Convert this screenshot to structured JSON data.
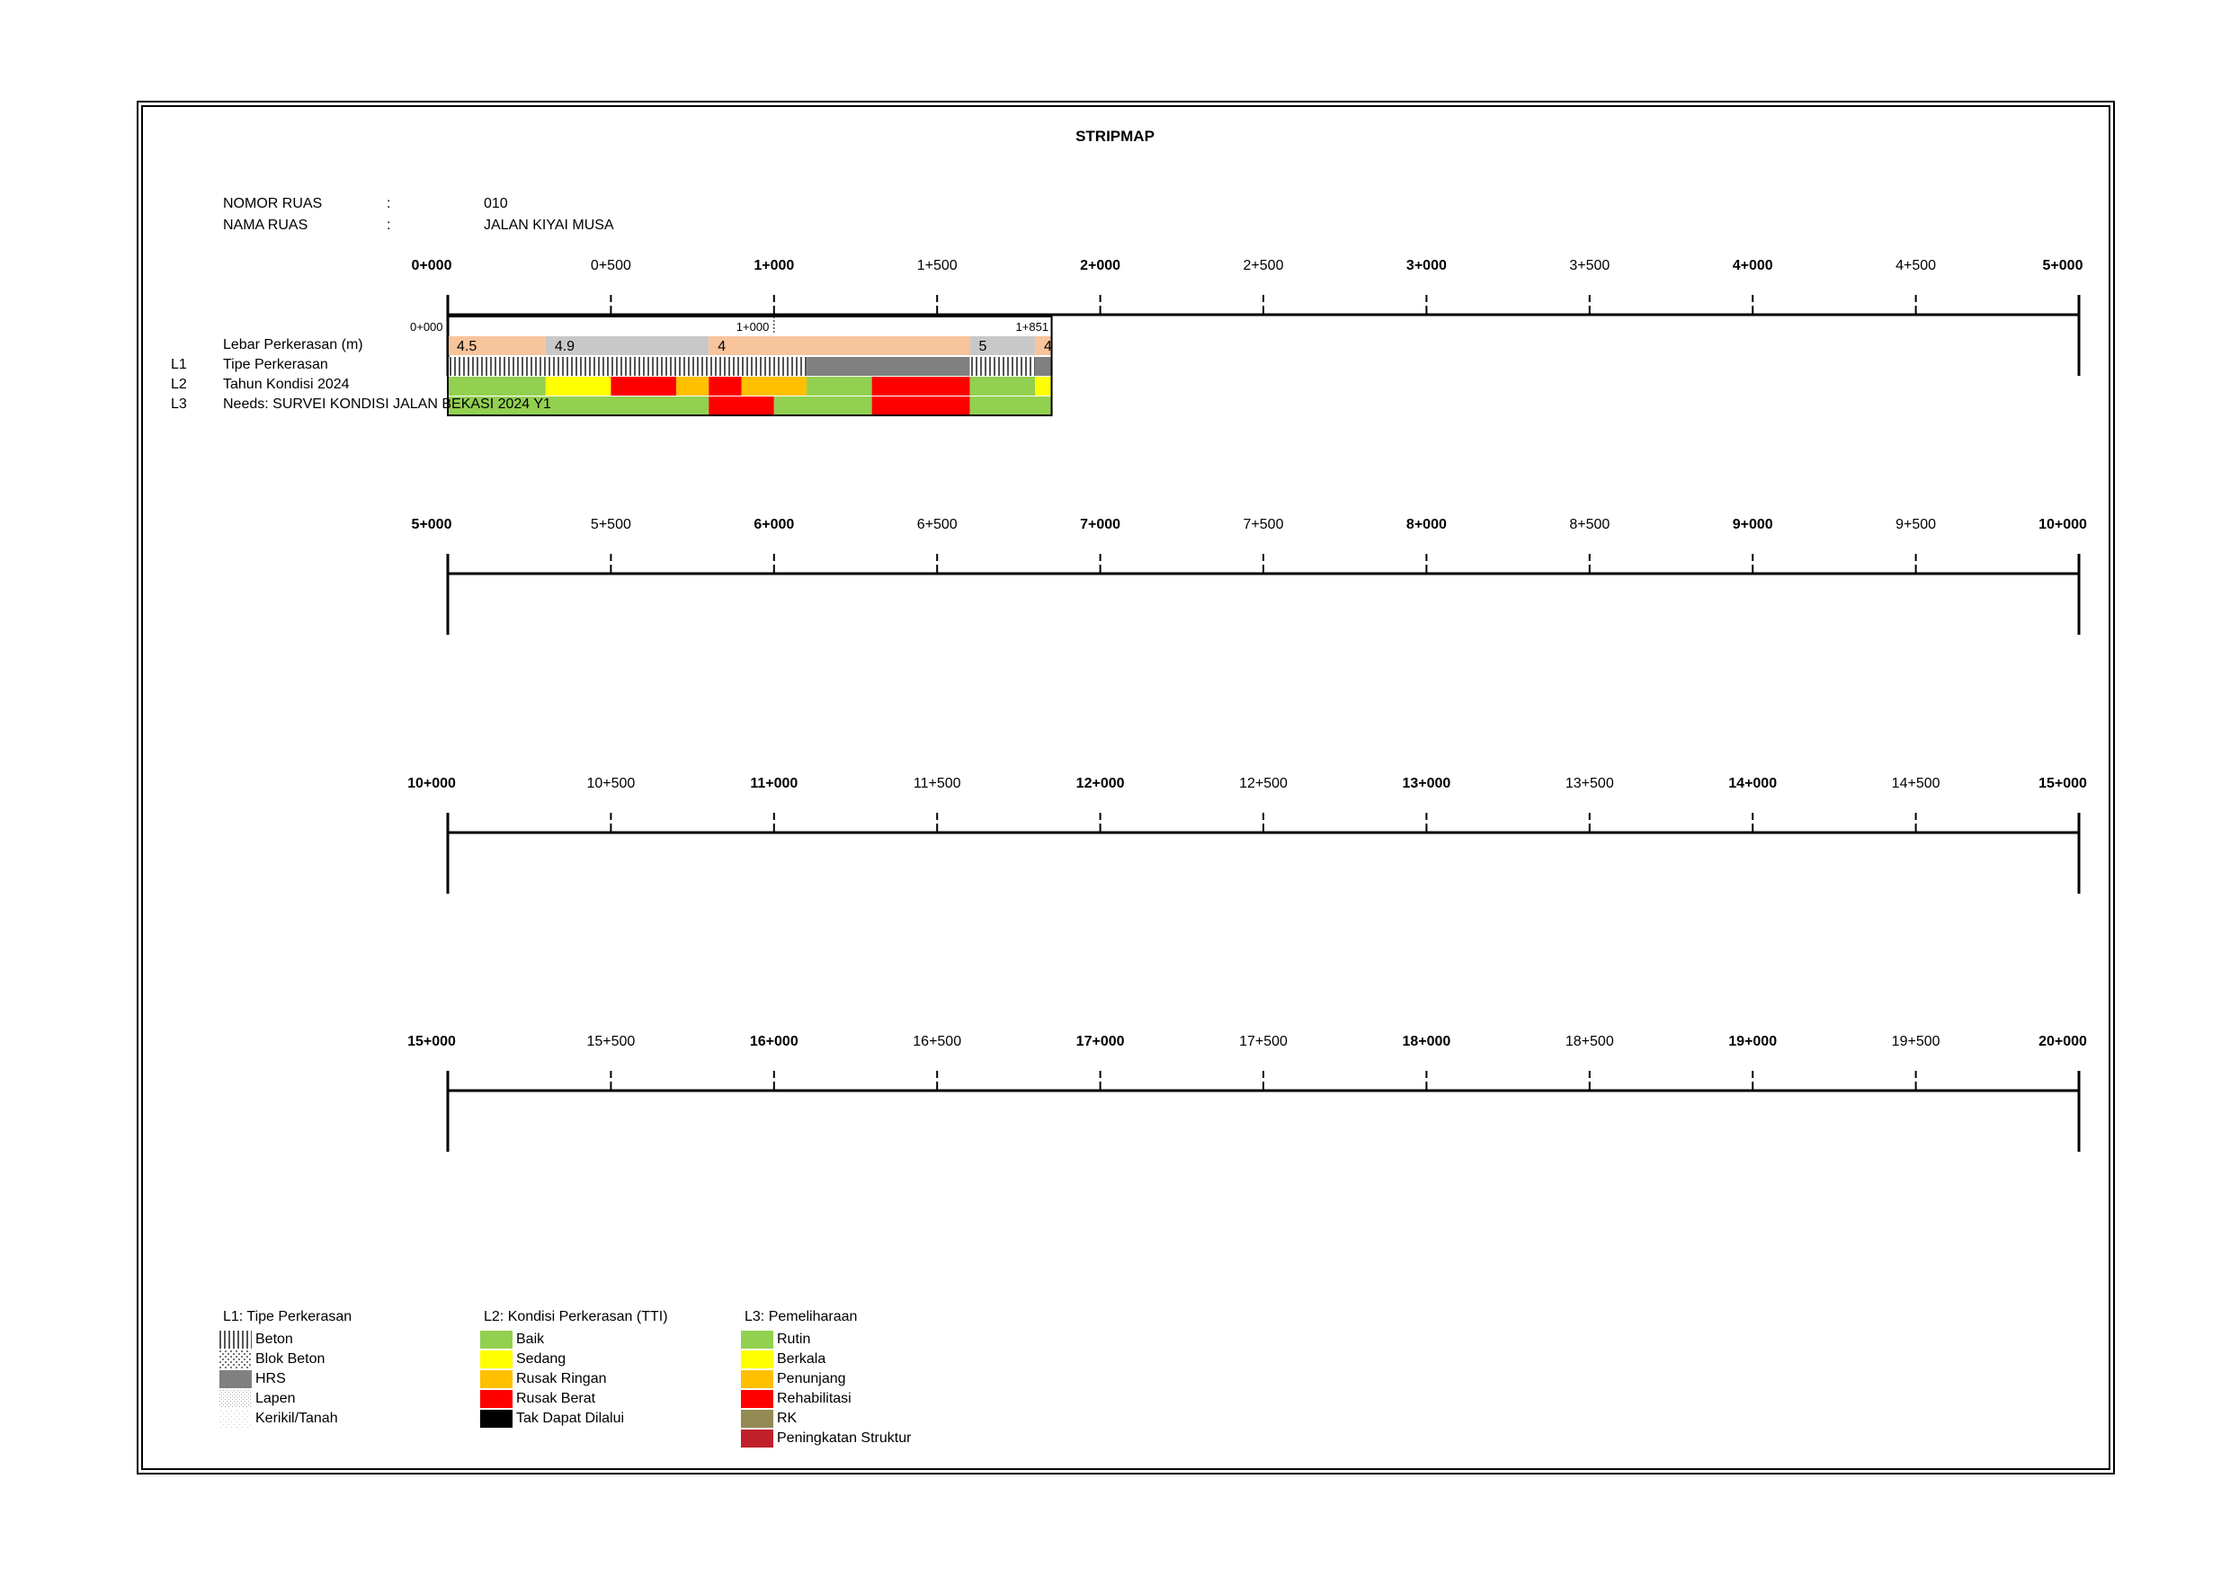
{
  "title": "STRIPMAP",
  "header": {
    "nomor_label": "NOMOR RUAS",
    "nama_label": "NAMA RUAS",
    "colon": ":",
    "nomor_value": "010",
    "nama_value": "JALAN KIYAI MUSA"
  },
  "rows": {
    "width_label": "Lebar Perkerasan (m)",
    "l1_code": "L1",
    "l1_label": "Tipe Perkerasan",
    "l2_code": "L2",
    "l2_label": "Tahun Kondisi 2024",
    "l3_code": "L3",
    "l3_label": "Needs: SURVEI KONDISI JALAN BEKASI 2024 Y1"
  },
  "chainage_lines": [
    {
      "labels": [
        "0+000",
        "0+500",
        "1+000",
        "1+500",
        "2+000",
        "2+500",
        "3+000",
        "3+500",
        "4+000",
        "4+500",
        "5+000"
      ]
    },
    {
      "labels": [
        "5+000",
        "5+500",
        "6+000",
        "6+500",
        "7+000",
        "7+500",
        "8+000",
        "8+500",
        "9+000",
        "9+500",
        "10+000"
      ]
    },
    {
      "labels": [
        "10+000",
        "10+500",
        "11+000",
        "11+500",
        "12+000",
        "12+500",
        "13+000",
        "13+500",
        "14+000",
        "14+500",
        "15+000"
      ]
    },
    {
      "labels": [
        "15+000",
        "15+500",
        "16+000",
        "16+500",
        "17+000",
        "17+500",
        "18+000",
        "18+500",
        "19+000",
        "19+500",
        "20+000"
      ]
    }
  ],
  "road": {
    "start_label": "0+000",
    "mid_label": "1+000",
    "end_label": "1+851",
    "length_km": 1.851,
    "width_segments": [
      {
        "from": 0.0,
        "to": 0.3,
        "value": "4.5",
        "color": "#f8c49c"
      },
      {
        "from": 0.3,
        "to": 0.8,
        "value": "4.9",
        "color": "#c8c8c8"
      },
      {
        "from": 0.8,
        "to": 1.6,
        "value": "4",
        "color": "#f8c49c"
      },
      {
        "from": 1.6,
        "to": 1.8,
        "value": "5",
        "color": "#c8c8c8"
      },
      {
        "from": 1.8,
        "to": 1.851,
        "value": "4",
        "color": "#f8c49c"
      }
    ],
    "type_segments": [
      {
        "from": 0.0,
        "to": 1.1,
        "type": "Beton"
      },
      {
        "from": 1.1,
        "to": 1.6,
        "type": "HRS"
      },
      {
        "from": 1.6,
        "to": 1.8,
        "type": "Beton"
      },
      {
        "from": 1.8,
        "to": 1.851,
        "type": "HRS"
      }
    ],
    "condition_segments": [
      {
        "from": 0.0,
        "to": 0.3,
        "class": "Baik"
      },
      {
        "from": 0.3,
        "to": 0.5,
        "class": "Sedang"
      },
      {
        "from": 0.5,
        "to": 0.7,
        "class": "Rusak Berat"
      },
      {
        "from": 0.7,
        "to": 0.8,
        "class": "Rusak Ringan"
      },
      {
        "from": 0.8,
        "to": 0.9,
        "class": "Rusak Berat"
      },
      {
        "from": 0.9,
        "to": 1.1,
        "class": "Rusak Ringan"
      },
      {
        "from": 1.1,
        "to": 1.3,
        "class": "Baik"
      },
      {
        "from": 1.3,
        "to": 1.6,
        "class": "Rusak Berat"
      },
      {
        "from": 1.6,
        "to": 1.8,
        "class": "Baik"
      },
      {
        "from": 1.8,
        "to": 1.851,
        "class": "Sedang"
      }
    ],
    "needs_segments": [
      {
        "from": 0.0,
        "to": 0.8,
        "class": "Rutin"
      },
      {
        "from": 0.8,
        "to": 1.0,
        "class": "Rehabilitasi"
      },
      {
        "from": 1.0,
        "to": 1.3,
        "class": "Rutin"
      },
      {
        "from": 1.3,
        "to": 1.6,
        "class": "Rehabilitasi"
      },
      {
        "from": 1.6,
        "to": 1.851,
        "class": "Rutin"
      }
    ]
  },
  "legend": {
    "l1": {
      "title": "L1: Tipe Perkerasan",
      "items": [
        {
          "label": "Beton",
          "pattern": "beton"
        },
        {
          "label": "Blok Beton",
          "pattern": "blok"
        },
        {
          "label": "HRS",
          "pattern": "hrs"
        },
        {
          "label": "Lapen",
          "pattern": "lapen"
        },
        {
          "label": "Kerikil/Tanah",
          "pattern": "kerikil"
        }
      ]
    },
    "l2": {
      "title": "L2: Kondisi Perkerasan (TTI)",
      "items": [
        {
          "label": "Baik",
          "color": "#92d050"
        },
        {
          "label": "Sedang",
          "color": "#ffff00"
        },
        {
          "label": "Rusak Ringan",
          "color": "#ffc000"
        },
        {
          "label": "Rusak Berat",
          "color": "#ff0000"
        },
        {
          "label": "Tak Dapat Dilalui",
          "color": "#000000"
        }
      ]
    },
    "l3": {
      "title": "L3: Pemeliharaan",
      "items": [
        {
          "label": "Rutin",
          "color": "#92d050"
        },
        {
          "label": "Berkala",
          "color": "#ffff00"
        },
        {
          "label": "Penunjang",
          "color": "#ffc000"
        },
        {
          "label": "Rehabilitasi",
          "color": "#ff0000"
        },
        {
          "label": "RK",
          "color": "#948a54"
        },
        {
          "label": "Peningkatan Struktur",
          "color": "#c0202a"
        }
      ]
    }
  }
}
